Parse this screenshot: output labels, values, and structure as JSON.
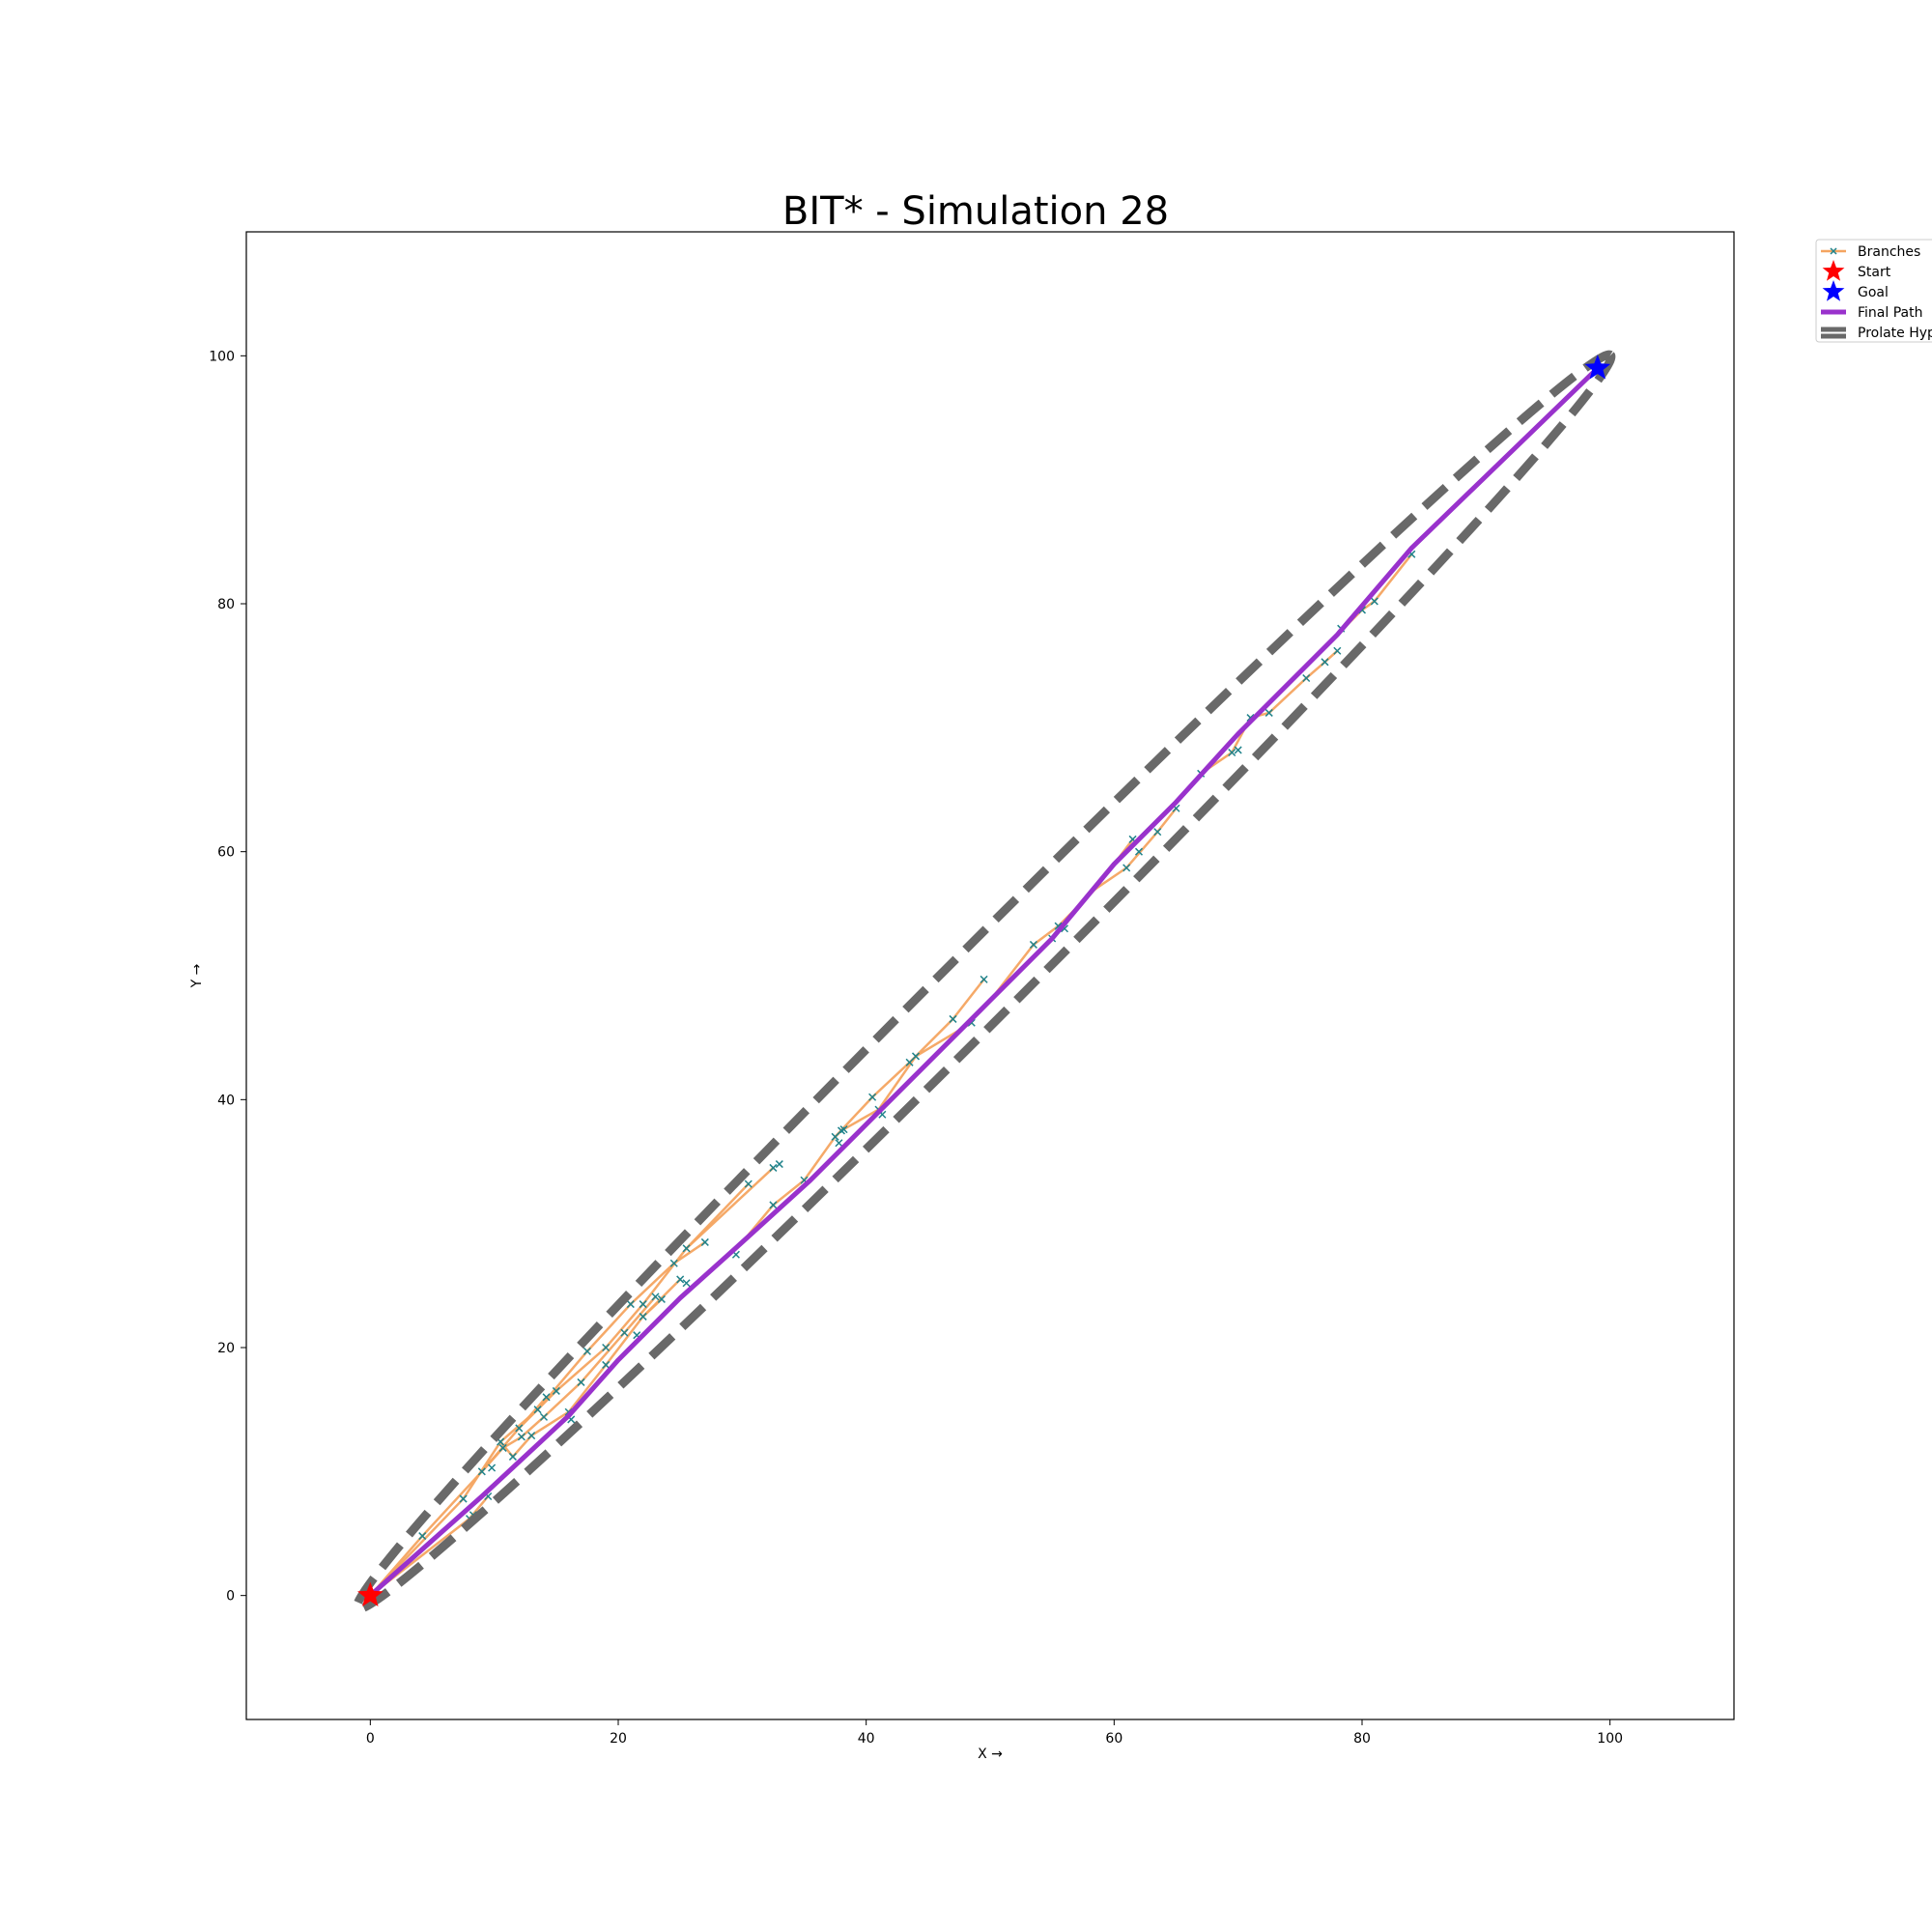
{
  "chart_data": {
    "type": "line",
    "title": "BIT* - Simulation 28",
    "xlabel": "X →",
    "ylabel": "Y →",
    "xlim": [
      -10,
      110
    ],
    "ylim": [
      -10,
      110
    ],
    "xticks": [
      0,
      20,
      40,
      60,
      80,
      100
    ],
    "yticks": [
      0,
      20,
      40,
      60,
      80,
      100
    ],
    "grid": false,
    "legend_position": "outside-top-right",
    "legend": [
      {
        "label": "Branches",
        "kind": "branch"
      },
      {
        "label": "Start",
        "kind": "start"
      },
      {
        "label": "Goal",
        "kind": "goal"
      },
      {
        "label": "Final Path",
        "kind": "path"
      },
      {
        "label": "Prolate Hyperspheroid",
        "kind": "ellipse"
      }
    ],
    "colors": {
      "branch": "#f4a460",
      "sample": "#20838b",
      "start": "#ff0000",
      "goal": "#0000ff",
      "path": "#9932cc",
      "ellipse": "#696969"
    },
    "start": [
      0,
      0
    ],
    "goal": [
      99,
      99
    ],
    "ellipse": {
      "center": [
        49.5,
        49.5
      ],
      "angle_deg": 45,
      "semi_major": 71.5,
      "semi_minor": 2.9
    },
    "final_path": [
      [
        0,
        0
      ],
      [
        9,
        8
      ],
      [
        16,
        14.5
      ],
      [
        20,
        19
      ],
      [
        25,
        24
      ],
      [
        30,
        28.5
      ],
      [
        35.5,
        33.5
      ],
      [
        41,
        39
      ],
      [
        45,
        43
      ],
      [
        50,
        48
      ],
      [
        55,
        53
      ],
      [
        60,
        59
      ],
      [
        65,
        64
      ],
      [
        70,
        69.5
      ],
      [
        78,
        77.5
      ],
      [
        84,
        84.5
      ],
      [
        99,
        99
      ]
    ],
    "branches": [
      [
        [
          0,
          0
        ],
        [
          4.2,
          4.8
        ]
      ],
      [
        [
          4.2,
          4.8
        ],
        [
          9,
          10
        ]
      ],
      [
        [
          9,
          10
        ],
        [
          12,
          13.5
        ]
      ],
      [
        [
          12,
          13.5
        ],
        [
          15,
          16.5
        ]
      ],
      [
        [
          15,
          16.5
        ],
        [
          19,
          20
        ]
      ],
      [
        [
          19,
          20
        ],
        [
          22,
          23.5
        ]
      ],
      [
        [
          22,
          23.5
        ],
        [
          25.5,
          28
        ]
      ],
      [
        [
          25.5,
          28
        ],
        [
          32.5,
          34.5
        ]
      ],
      [
        [
          25.5,
          28
        ],
        [
          30.5,
          33.2
        ]
      ],
      [
        [
          0,
          0
        ],
        [
          7.5,
          7.8
        ]
      ],
      [
        [
          7.5,
          7.8
        ],
        [
          10.5,
          12.4
        ]
      ],
      [
        [
          10.5,
          12.4
        ],
        [
          13.5,
          15
        ]
      ],
      [
        [
          13.5,
          15
        ],
        [
          17.5,
          19.7
        ]
      ],
      [
        [
          17.5,
          19.7
        ],
        [
          21,
          23.5
        ]
      ],
      [
        [
          21,
          23.5
        ],
        [
          24.5,
          26.8
        ]
      ],
      [
        [
          24.5,
          26.8
        ],
        [
          27,
          28.5
        ]
      ],
      [
        [
          12,
          13.5
        ],
        [
          14.2,
          16
        ]
      ],
      [
        [
          10.5,
          12.4
        ],
        [
          11.5,
          11.2
        ]
      ],
      [
        [
          11.5,
          11.2
        ],
        [
          13,
          12.9
        ]
      ],
      [
        [
          13,
          12.9
        ],
        [
          16,
          14.8
        ]
      ],
      [
        [
          16,
          14.8
        ],
        [
          19,
          18.6
        ]
      ],
      [
        [
          19,
          18.6
        ],
        [
          22,
          22.5
        ]
      ],
      [
        [
          22,
          22.5
        ],
        [
          25,
          25.5
        ]
      ],
      [
        [
          22,
          22.5
        ],
        [
          23.5,
          23.9
        ]
      ],
      [
        [
          0,
          0
        ],
        [
          8,
          6.2
        ]
      ],
      [
        [
          8,
          6.2
        ],
        [
          9.5,
          8
        ]
      ],
      [
        [
          9,
          10
        ],
        [
          10.7,
          11.9
        ]
      ],
      [
        [
          10.7,
          11.9
        ],
        [
          12.2,
          12.8
        ]
      ],
      [
        [
          12.2,
          12.8
        ],
        [
          14,
          14.4
        ]
      ],
      [
        [
          14,
          14.4
        ],
        [
          17,
          17.2
        ]
      ],
      [
        [
          17,
          17.2
        ],
        [
          20.5,
          21.2
        ]
      ],
      [
        [
          20.5,
          21.2
        ],
        [
          23,
          24.1
        ]
      ],
      [
        [
          30,
          28.5
        ],
        [
          32.5,
          31.5
        ]
      ],
      [
        [
          32.5,
          31.5
        ],
        [
          35,
          33.5
        ]
      ],
      [
        [
          35,
          33.5
        ],
        [
          37.5,
          37
        ]
      ],
      [
        [
          37.5,
          37
        ],
        [
          40.5,
          40.2
        ]
      ],
      [
        [
          40.5,
          40.2
        ],
        [
          43.5,
          43
        ]
      ],
      [
        [
          43.5,
          43
        ],
        [
          47,
          46.5
        ]
      ],
      [
        [
          47,
          46.5
        ],
        [
          49.5,
          49.7
        ]
      ],
      [
        [
          37.5,
          37
        ],
        [
          38,
          37.5
        ]
      ],
      [
        [
          38,
          37.5
        ],
        [
          41,
          39.2
        ]
      ],
      [
        [
          41,
          39.2
        ],
        [
          44,
          43.5
        ]
      ],
      [
        [
          44,
          43.5
        ],
        [
          48.5,
          46.2
        ]
      ],
      [
        [
          50,
          48
        ],
        [
          53.5,
          52.5
        ]
      ],
      [
        [
          53.5,
          52.5
        ],
        [
          55.5,
          54
        ]
      ],
      [
        [
          55.5,
          54
        ],
        [
          58.5,
          57
        ]
      ],
      [
        [
          58.5,
          57
        ],
        [
          61.5,
          61
        ]
      ],
      [
        [
          58.5,
          57
        ],
        [
          61,
          58.7
        ]
      ],
      [
        [
          61,
          58.7
        ],
        [
          63.5,
          61.6
        ]
      ],
      [
        [
          63.5,
          61.6
        ],
        [
          65,
          63.5
        ]
      ],
      [
        [
          65,
          64
        ],
        [
          67,
          66.3
        ]
      ],
      [
        [
          67,
          66.3
        ],
        [
          69.5,
          68
        ]
      ],
      [
        [
          69.5,
          68
        ],
        [
          71,
          70.8
        ]
      ],
      [
        [
          71,
          70.8
        ],
        [
          72.5,
          71.2
        ]
      ],
      [
        [
          72.5,
          71.2
        ],
        [
          75.5,
          74
        ]
      ],
      [
        [
          75.5,
          74
        ],
        [
          77,
          75.3
        ]
      ],
      [
        [
          77,
          75.3
        ],
        [
          78,
          76.2
        ]
      ],
      [
        [
          78,
          77.5
        ],
        [
          80,
          79.5
        ]
      ],
      [
        [
          80,
          79.5
        ],
        [
          81,
          80.2
        ]
      ],
      [
        [
          81,
          80.2
        ],
        [
          84,
          84
        ]
      ]
    ],
    "samples": [
      [
        4.2,
        4.8
      ],
      [
        7.5,
        7.8
      ],
      [
        8,
        6.2
      ],
      [
        8.3,
        6.5
      ],
      [
        9.5,
        8
      ],
      [
        9,
        10
      ],
      [
        9.8,
        10.3
      ],
      [
        10.5,
        12.4
      ],
      [
        10.7,
        11.9
      ],
      [
        11.5,
        11.2
      ],
      [
        12,
        13.5
      ],
      [
        12.2,
        12.8
      ],
      [
        13,
        12.9
      ],
      [
        13.5,
        15
      ],
      [
        14,
        14.4
      ],
      [
        14.2,
        16
      ],
      [
        15,
        16.5
      ],
      [
        16,
        14.8
      ],
      [
        16.2,
        14.2
      ],
      [
        17,
        17.2
      ],
      [
        17.5,
        19.7
      ],
      [
        19,
        20
      ],
      [
        19,
        18.6
      ],
      [
        20.5,
        21.2
      ],
      [
        21,
        23.5
      ],
      [
        21.5,
        21
      ],
      [
        22,
        22.5
      ],
      [
        22,
        23.5
      ],
      [
        23,
        24.1
      ],
      [
        23.5,
        23.9
      ],
      [
        24.5,
        26.8
      ],
      [
        25,
        25.5
      ],
      [
        25.5,
        25.2
      ],
      [
        25.5,
        28
      ],
      [
        27,
        28.5
      ],
      [
        29.5,
        27.5
      ],
      [
        30.5,
        33.2
      ],
      [
        32.5,
        34.5
      ],
      [
        32.5,
        31.5
      ],
      [
        33,
        34.8
      ],
      [
        35,
        33.5
      ],
      [
        37.5,
        37
      ],
      [
        38,
        37.5
      ],
      [
        38.2,
        37.6
      ],
      [
        37.8,
        36.5
      ],
      [
        40.5,
        40.2
      ],
      [
        41,
        39.2
      ],
      [
        41.3,
        38.8
      ],
      [
        43.5,
        43
      ],
      [
        44,
        43.5
      ],
      [
        47,
        46.5
      ],
      [
        48.5,
        46.2
      ],
      [
        49.5,
        49.7
      ],
      [
        53.5,
        52.5
      ],
      [
        55,
        53
      ],
      [
        55.5,
        54
      ],
      [
        56,
        53.8
      ],
      [
        61,
        58.7
      ],
      [
        61.5,
        61
      ],
      [
        62,
        60
      ],
      [
        63.5,
        61.6
      ],
      [
        65,
        63.5
      ],
      [
        67,
        66.3
      ],
      [
        69.5,
        68
      ],
      [
        70,
        68.2
      ],
      [
        71,
        70.8
      ],
      [
        72.5,
        71.2
      ],
      [
        75.5,
        74
      ],
      [
        77,
        75.3
      ],
      [
        78,
        76.2
      ],
      [
        78.3,
        78
      ],
      [
        80,
        79.5
      ],
      [
        81,
        80.2
      ],
      [
        84,
        84
      ]
    ]
  }
}
